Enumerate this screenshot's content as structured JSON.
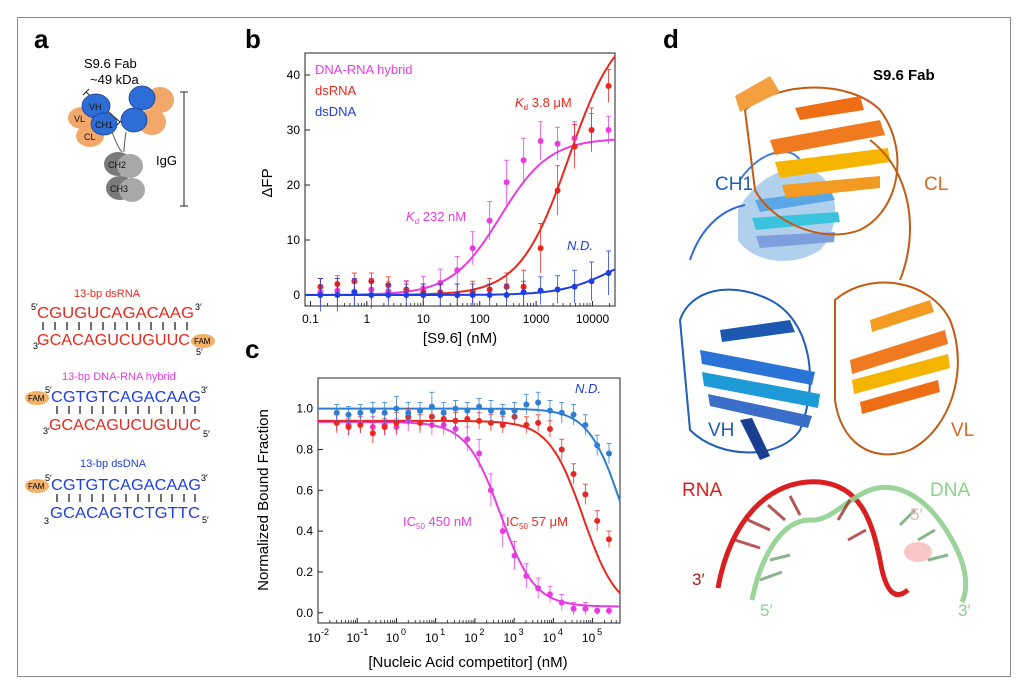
{
  "panels": {
    "a": "a",
    "b": "b",
    "c": "c",
    "d": "d"
  },
  "colors": {
    "rna": "#e8281e",
    "hybrid": "#e63de0",
    "dna": "#1f3fe0",
    "dna_c": "#2e7fd1",
    "fab_blue": "#2f6dd6",
    "fab_orange": "#f1a86a",
    "gray": "#8d8d8d",
    "fam": "#f3b26a",
    "rna_ribbon": "#d91f1f",
    "dna_ribbon": "#8fcf8f",
    "cl_orange": "#d96a1f"
  },
  "panel_a": {
    "fab_title": "S9.6 Fab",
    "fab_mass": "~49 kDa",
    "domains": [
      "VH",
      "VL",
      "CH1",
      "CL",
      "CH2",
      "CH3"
    ],
    "igg_label": "IgG",
    "constructs": [
      {
        "title": "13-bp dsRNA",
        "top_5": "5′",
        "top_seq": "CGUGUCAGACAAG",
        "top_3": "3′",
        "bottom_3": "3′",
        "bottom_seq": "GCACAGUCUGUUC",
        "bottom_5": "5′",
        "fam": "FAM"
      },
      {
        "title": "13-bp DNA-RNA hybrid",
        "top_5": "5′",
        "top_seq": "CGTGTCAGACAAG",
        "top_3": "3′",
        "bottom_3": "3′",
        "bottom_seq": "GCACAGUCUGUUC",
        "bottom_5": "5′",
        "fam": "FAM"
      },
      {
        "title": "13-bp dsDNA",
        "top_5": "5′",
        "top_seq": "CGTGTCAGACAAG",
        "top_3": "3′",
        "bottom_3": "3",
        "bottom_seq": "GCACAGTCTGTTC",
        "bottom_5": "5′",
        "fam": "FAM"
      }
    ]
  },
  "chart_data": [
    {
      "panel": "b",
      "type": "scatter",
      "xlabel": "[S9.6] (nM)",
      "ylabel": "ΔFP",
      "xscale": "log",
      "xlim": [
        0.08,
        25000
      ],
      "ylim": [
        -2,
        44
      ],
      "xticks": [
        0.1,
        1,
        10,
        100,
        1000,
        10000
      ],
      "xticklabels": [
        "0.1",
        "1",
        "10",
        "100",
        "1000",
        "10000"
      ],
      "yticks": [
        0,
        10,
        20,
        30,
        40
      ],
      "legend": [
        "DNA-RNA hybrid",
        "dsRNA",
        "dsDNA"
      ],
      "legend_position": "top-left",
      "annotations": [
        {
          "text_main": "K",
          "text_sub": "d",
          "text_rest": " 232 nM",
          "series": "DNA-RNA hybrid"
        },
        {
          "text_main": "K",
          "text_sub": "d",
          "text_rest": " 3.8 μM",
          "series": "dsRNA"
        },
        {
          "text": "N.D.",
          "series": "dsDNA"
        }
      ],
      "series": [
        {
          "name": "DNA-RNA hybrid",
          "color": "#e63de0",
          "x": [
            0.15,
            0.3,
            0.6,
            1.2,
            2.4,
            5,
            10,
            20,
            40,
            75,
            150,
            300,
            600,
            1200,
            2400,
            4800,
            9600,
            19200
          ],
          "y": [
            0.5,
            0.8,
            0.6,
            1.0,
            0.7,
            0.8,
            1.2,
            2.2,
            4.5,
            8.5,
            13.5,
            20.5,
            24.5,
            28.0,
            27.5,
            28.5,
            30.0,
            30.0
          ],
          "err": [
            2.5,
            2.2,
            2.0,
            2.0,
            1.8,
            1.8,
            2.2,
            2.5,
            2.5,
            3.0,
            3.5,
            4.0,
            4.0,
            3.5,
            3.0,
            3.0,
            3.0,
            2.5
          ],
          "fit": {
            "model": "binding",
            "top": 28.5,
            "kd": 232
          }
        },
        {
          "name": "dsRNA",
          "color": "#e8281e",
          "x": [
            0.15,
            0.3,
            0.6,
            1.2,
            2.4,
            5,
            10,
            20,
            40,
            75,
            150,
            300,
            600,
            1200,
            2400,
            4800,
            9600,
            19200
          ],
          "y": [
            1.5,
            2.0,
            2.5,
            2.5,
            1.8,
            1.0,
            0.5,
            0.5,
            0.0,
            0.5,
            1.0,
            1.5,
            1.5,
            8.5,
            19.0,
            27.0,
            30.0,
            38.0
          ],
          "err": [
            1.5,
            1.5,
            1.5,
            1.5,
            1.5,
            1.5,
            1.5,
            1.5,
            2.0,
            2.0,
            2.0,
            2.5,
            3.0,
            4.5,
            4.5,
            4.0,
            4.0,
            3.0
          ],
          "fit": {
            "model": "binding",
            "top": 50,
            "kd": 3800
          }
        },
        {
          "name": "dsDNA",
          "color": "#1f3fe0",
          "x": [
            0.15,
            0.3,
            0.6,
            1.2,
            2.4,
            5,
            10,
            20,
            40,
            75,
            150,
            300,
            600,
            1200,
            2400,
            4800,
            9600,
            19200
          ],
          "y": [
            0.0,
            0.0,
            0.5,
            0.0,
            0.0,
            0.0,
            0.0,
            0.0,
            0.0,
            0.0,
            0.0,
            0.0,
            0.5,
            0.8,
            1.0,
            1.5,
            2.5,
            4.0
          ],
          "err": [
            3.0,
            3.0,
            2.5,
            2.5,
            2.0,
            2.0,
            2.0,
            2.0,
            2.0,
            2.0,
            2.0,
            2.0,
            2.0,
            2.5,
            2.5,
            3.0,
            3.5,
            4.0
          ],
          "fit": {
            "model": "linear-ish",
            "top": 4.2
          }
        }
      ]
    },
    {
      "panel": "c",
      "type": "scatter",
      "xlabel": "[Nucleic Acid competitor] (nM)",
      "ylabel": "Normalized Bound Fraction",
      "xscale": "log",
      "xlim": [
        0.01,
        500000
      ],
      "ylim": [
        -0.05,
        1.15
      ],
      "xtick_exponents": [
        -2,
        -1,
        0,
        1,
        2,
        3,
        4,
        5
      ],
      "xtick_base": "10",
      "yticks": [
        0.0,
        0.2,
        0.4,
        0.6,
        0.8,
        1.0
      ],
      "yticklabels": [
        "0.0",
        "0.2",
        "0.4",
        "0.6",
        "0.8",
        "1.0"
      ],
      "annotations": [
        {
          "text_main": "IC",
          "text_sub": "50",
          "text_rest": " 450 nM",
          "series": "DNA-RNA hybrid"
        },
        {
          "text_main": "IC",
          "text_sub": "50",
          "text_rest": " 57 μM",
          "series": "dsRNA"
        },
        {
          "text": "N.D.",
          "series": "dsDNA"
        }
      ],
      "series": [
        {
          "name": "DNA-RNA hybrid",
          "color": "#e63de0",
          "x": [
            0.03,
            0.06,
            0.12,
            0.25,
            0.5,
            1,
            2,
            4,
            8,
            16,
            32,
            64,
            128,
            256,
            512,
            1024,
            2048,
            4096,
            8192,
            16384,
            32768,
            65536,
            131072,
            262144
          ],
          "y": [
            0.93,
            0.92,
            0.93,
            0.91,
            0.92,
            0.91,
            0.94,
            0.93,
            0.92,
            0.92,
            0.9,
            0.85,
            0.78,
            0.6,
            0.4,
            0.28,
            0.18,
            0.12,
            0.09,
            0.05,
            0.02,
            0.02,
            0.01,
            0.01
          ],
          "err": [
            0.05,
            0.05,
            0.05,
            0.05,
            0.05,
            0.04,
            0.05,
            0.05,
            0.05,
            0.05,
            0.05,
            0.06,
            0.07,
            0.08,
            0.08,
            0.07,
            0.06,
            0.05,
            0.04,
            0.04,
            0.03,
            0.03,
            0.02,
            0.02
          ],
          "fit": {
            "model": "inhibition",
            "top": 0.935,
            "bottom": 0.03,
            "ic50": 450
          }
        },
        {
          "name": "dsRNA",
          "color": "#e8281e",
          "x": [
            0.03,
            0.06,
            0.12,
            0.25,
            0.5,
            1,
            2,
            4,
            8,
            16,
            32,
            64,
            128,
            256,
            512,
            1024,
            2048,
            4096,
            8192,
            16384,
            32768,
            65536,
            131072,
            262144
          ],
          "y": [
            0.93,
            0.91,
            0.92,
            0.88,
            0.91,
            0.93,
            0.96,
            0.93,
            0.96,
            0.95,
            0.94,
            0.95,
            0.94,
            0.93,
            0.92,
            0.96,
            0.92,
            0.93,
            0.9,
            0.8,
            0.68,
            0.58,
            0.45,
            0.36
          ],
          "err": [
            0.04,
            0.04,
            0.04,
            0.05,
            0.04,
            0.05,
            0.04,
            0.04,
            0.05,
            0.04,
            0.04,
            0.04,
            0.04,
            0.04,
            0.04,
            0.04,
            0.04,
            0.04,
            0.04,
            0.05,
            0.05,
            0.05,
            0.05,
            0.04
          ],
          "fit": {
            "model": "inhibition",
            "top": 0.94,
            "bottom": 0.0,
            "ic50": 57000
          }
        },
        {
          "name": "dsDNA",
          "color": "#2e7fd1",
          "x": [
            0.03,
            0.06,
            0.12,
            0.25,
            0.5,
            1,
            2,
            4,
            8,
            16,
            32,
            64,
            128,
            256,
            512,
            1024,
            2048,
            4096,
            8192,
            16384,
            32768,
            65536,
            131072,
            262144
          ],
          "y": [
            0.98,
            0.97,
            0.98,
            0.99,
            0.98,
            1.0,
            0.98,
            0.99,
            1.01,
            0.98,
            1.0,
            0.99,
            1.01,
            0.99,
            0.98,
            0.99,
            1.02,
            1.03,
            0.99,
            0.98,
            0.97,
            0.92,
            0.82,
            0.78
          ],
          "err": [
            0.04,
            0.04,
            0.04,
            0.04,
            0.05,
            0.06,
            0.05,
            0.04,
            0.07,
            0.05,
            0.04,
            0.04,
            0.04,
            0.05,
            0.04,
            0.04,
            0.05,
            0.05,
            0.05,
            0.05,
            0.05,
            0.05,
            0.05,
            0.05
          ],
          "fit": {
            "model": "inhibition",
            "top": 1.0,
            "bottom": 0.0,
            "ic50": 600000
          }
        }
      ]
    }
  ],
  "panel_d": {
    "title": "S9.6 Fab",
    "labels": {
      "ch1": "CH1",
      "cl": "CL",
      "vh": "VH",
      "vl": "VL",
      "rna": "RNA",
      "dna": "DNA",
      "rna_3": "3′",
      "dna_5_bottom": "5′",
      "dna_5_top": "5′",
      "dna_3": "3′"
    }
  }
}
